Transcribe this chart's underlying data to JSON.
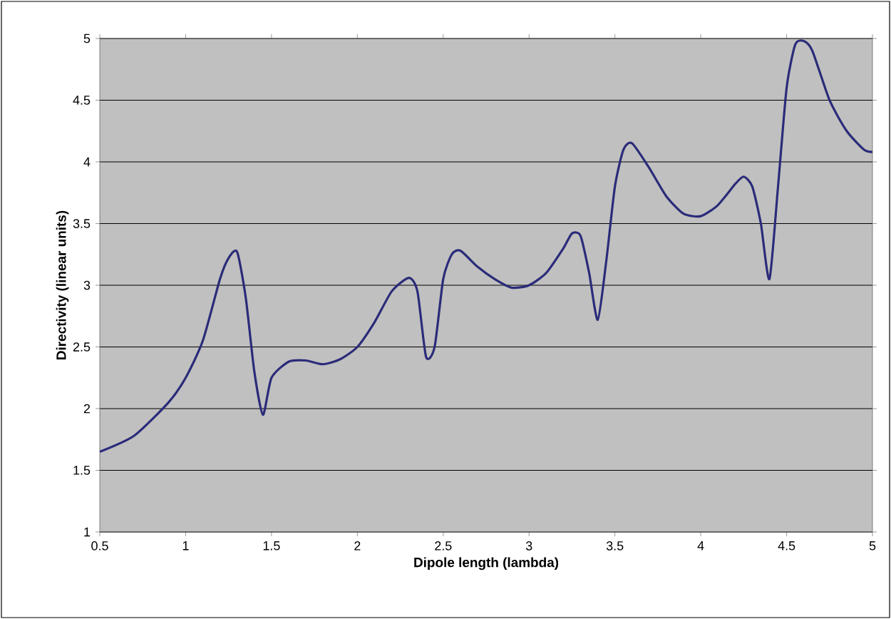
{
  "chart_data": {
    "type": "line",
    "xlabel": "Dipole length (lambda)",
    "ylabel": "Directivity (linear units)",
    "xlim": [
      0.5,
      5
    ],
    "xticks": [
      0.5,
      1,
      1.5,
      2,
      2.5,
      3,
      3.5,
      4,
      4.5,
      5
    ],
    "ylim": [
      1,
      5
    ],
    "yticks": [
      1,
      1.5,
      2,
      2.5,
      3,
      3.5,
      4,
      4.5,
      5
    ],
    "grid": "y",
    "marker": "none",
    "line_style": "solid",
    "series": [
      {
        "color": "#2b2b7a",
        "x": [
          0.5,
          0.7,
          0.9,
          1.0,
          1.1,
          1.2,
          1.25,
          1.3,
          1.35,
          1.4,
          1.45,
          1.5,
          1.6,
          1.7,
          1.8,
          1.9,
          2.0,
          2.1,
          2.2,
          2.3,
          2.35,
          2.4,
          2.45,
          2.5,
          2.55,
          2.6,
          2.7,
          2.8,
          2.9,
          3.0,
          3.1,
          3.2,
          3.25,
          3.3,
          3.35,
          3.4,
          3.45,
          3.5,
          3.55,
          3.6,
          3.7,
          3.8,
          3.9,
          4.0,
          4.1,
          4.2,
          4.25,
          4.3,
          4.35,
          4.4,
          4.45,
          4.5,
          4.55,
          4.6,
          4.65,
          4.75,
          4.85,
          4.95,
          5.0
        ],
        "values": [
          1.65,
          1.78,
          2.05,
          2.25,
          2.55,
          3.05,
          3.22,
          3.27,
          2.9,
          2.3,
          1.95,
          2.25,
          2.38,
          2.39,
          2.36,
          2.4,
          2.5,
          2.7,
          2.95,
          3.06,
          2.95,
          2.42,
          2.5,
          3.05,
          3.25,
          3.28,
          3.15,
          3.05,
          2.98,
          3.0,
          3.1,
          3.3,
          3.42,
          3.4,
          3.1,
          2.72,
          3.2,
          3.8,
          4.1,
          4.15,
          3.95,
          3.72,
          3.58,
          3.56,
          3.65,
          3.82,
          3.88,
          3.8,
          3.5,
          3.05,
          3.8,
          4.6,
          4.95,
          4.98,
          4.9,
          4.5,
          4.25,
          4.1,
          4.08
        ]
      }
    ]
  }
}
